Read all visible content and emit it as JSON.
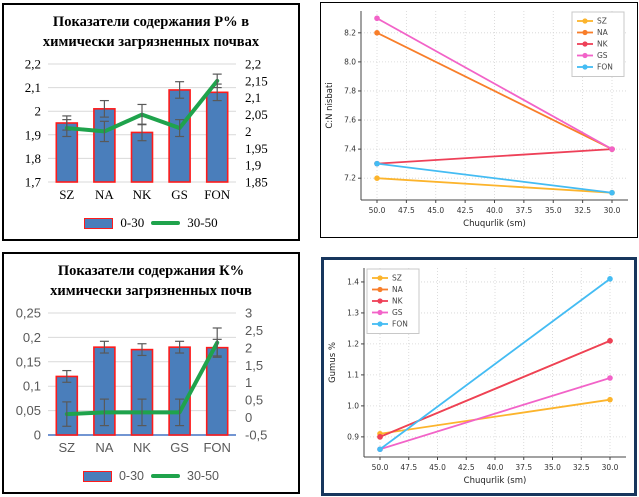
{
  "chart_data": [
    {
      "kind": "combo",
      "type": "bar",
      "title_lines": [
        "Показатели содержания Р% в",
        "химически загрязненных почвах"
      ],
      "title": "Показатели содержания Р% в химически загрязненных почвах",
      "categories": [
        "SZ",
        "NA",
        "NK",
        "GS",
        "FON"
      ],
      "bar_series": {
        "name": "0-30",
        "axis": "left",
        "values": [
          1.95,
          2.01,
          1.91,
          2.09,
          2.08
        ],
        "errors": [
          0.03,
          0.035,
          0.035,
          0.035,
          0.035
        ],
        "fill": "#4a7ebb",
        "stroke": "#fe1b1b"
      },
      "line_series": {
        "name": "30-50",
        "axis": "right",
        "values": [
          2.01,
          2.0,
          2.05,
          2.01,
          2.15
        ],
        "errors": [
          0.025,
          0.03,
          0.03,
          0.025,
          0.02
        ],
        "color": "#1fa34c"
      },
      "left_axis": {
        "min": 1.7,
        "max": 2.2,
        "tick_labels": [
          "2,2",
          "2,1",
          "2",
          "1,9",
          "1,8",
          "1,7"
        ]
      },
      "right_axis": {
        "min": 1.85,
        "max": 2.2,
        "tick_labels": [
          "2,2",
          "2,15",
          "2,1",
          "2,05",
          "2",
          "1,95",
          "1,9",
          "1,85"
        ]
      }
    },
    {
      "kind": "line",
      "type": "line",
      "ylabel": "C:N nisbati",
      "xlabel": "Chuqurlik (sm)",
      "x_values": [
        50,
        30
      ],
      "x_reversed": true,
      "x_tick_labels": [
        "50.0",
        "47.5",
        "45.0",
        "42.5",
        "40.0",
        "37.5",
        "35.0",
        "32.5",
        "30.0"
      ],
      "y_ticks": [
        7.2,
        7.4,
        7.6,
        7.8,
        8.0,
        8.2
      ],
      "y_tick_labels": [
        "7.2",
        "7.4",
        "7.6",
        "7.8",
        "8.0",
        "8.2"
      ],
      "ylim": [
        7.05,
        8.35
      ],
      "legend_position": "top-right",
      "series": [
        {
          "name": "SZ",
          "color": "#fcb42c",
          "values": [
            7.2,
            7.1
          ]
        },
        {
          "name": "NA",
          "color": "#f87e2a",
          "values": [
            8.2,
            7.4
          ]
        },
        {
          "name": "NK",
          "color": "#ee4058",
          "values": [
            7.3,
            7.4
          ]
        },
        {
          "name": "GS",
          "color": "#f263c8",
          "values": [
            8.3,
            7.4
          ]
        },
        {
          "name": "FON",
          "color": "#44bcf3",
          "values": [
            7.3,
            7.1
          ]
        }
      ]
    },
    {
      "kind": "combo",
      "type": "bar",
      "title_lines": [
        "Показатели содержания  К%",
        "химически загрязненных почв"
      ],
      "title": "Показатели содержания К% химически загрязненных почв",
      "categories": [
        "SZ",
        "NA",
        "NK",
        "GS",
        "FON"
      ],
      "bar_series": {
        "name": "0-30",
        "axis": "left",
        "values": [
          0.12,
          0.18,
          0.175,
          0.18,
          0.179
        ],
        "errors": [
          0.012,
          0.012,
          0.012,
          0.012,
          0.017
        ],
        "fill": "#4a7ebb",
        "stroke": "#fe1b1b"
      },
      "line_series": {
        "name": "30-50",
        "axis": "right",
        "values": [
          0.1,
          0.15,
          0.15,
          0.15,
          2.15
        ],
        "errors": [
          0.35,
          0.38,
          0.38,
          0.38,
          0.42
        ],
        "color": "#1fa34c"
      },
      "left_axis": {
        "min": 0,
        "max": 0.25,
        "tick_labels": [
          "0,25",
          "0,2",
          "0,15",
          "0,1",
          "0,05",
          "0"
        ]
      },
      "right_axis": {
        "min": -0.5,
        "max": 3,
        "tick_labels": [
          "3",
          "2,5",
          "2",
          "1,5",
          "1",
          "0,5",
          "0",
          "-0,5"
        ]
      }
    },
    {
      "kind": "line",
      "type": "line",
      "ylabel": "Gumus %",
      "xlabel": "Chuqurlik (sm)",
      "x_values": [
        50,
        30
      ],
      "x_reversed": true,
      "x_tick_labels": [
        "50.0",
        "47.5",
        "45.0",
        "42.5",
        "40.0",
        "37.5",
        "35.0",
        "32.5",
        "30.0"
      ],
      "y_ticks": [
        0.9,
        1.0,
        1.1,
        1.2,
        1.3,
        1.4
      ],
      "y_tick_labels": [
        "0.9",
        "1.0",
        "1.1",
        "1.2",
        "1.3",
        "1.4"
      ],
      "ylim": [
        0.835,
        1.445
      ],
      "legend_position": "top-left",
      "series": [
        {
          "name": "SZ",
          "color": "#fcb42c",
          "values": [
            0.91,
            1.02
          ]
        },
        {
          "name": "NA",
          "color": "#f87e2a",
          "values": [
            0.9,
            1.21
          ]
        },
        {
          "name": "NK",
          "color": "#ee4058",
          "values": [
            0.9,
            1.21
          ]
        },
        {
          "name": "GS",
          "color": "#f263c8",
          "values": [
            0.86,
            1.09
          ]
        },
        {
          "name": "FON",
          "color": "#44bcf3",
          "values": [
            0.86,
            1.41
          ]
        }
      ]
    }
  ]
}
